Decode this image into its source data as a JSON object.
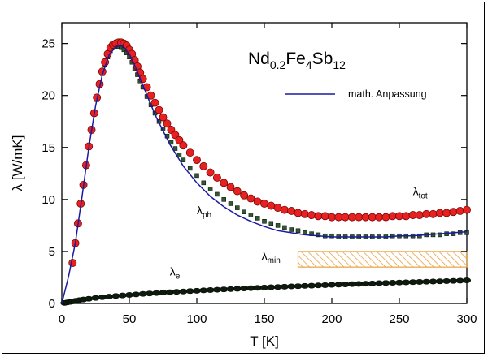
{
  "chart_data": {
    "type": "scatter",
    "title": {
      "main": "Nd",
      "sub1": "0.2",
      "mid1": "Fe",
      "sub2": "4",
      "mid2": "Sb",
      "sub3": "12"
    },
    "xlabel": "T [K]",
    "ylabel": "λ [W/mK]",
    "xlim": [
      0,
      300
    ],
    "ylim": [
      0,
      27
    ],
    "xticks": [
      0,
      50,
      100,
      150,
      200,
      250,
      300
    ],
    "yticks": [
      0,
      5,
      10,
      15,
      20,
      25
    ],
    "grid": false,
    "legend": {
      "position": "top-right",
      "entries": [
        {
          "label": "math. Anpassung",
          "color": "#1a1aa0"
        }
      ]
    },
    "annotations": [
      {
        "base": "λ",
        "sub": "tot",
        "x": 260,
        "y": 10.4
      },
      {
        "base": "λ",
        "sub": "ph",
        "x": 100,
        "y": 8.6
      },
      {
        "base": "λ",
        "sub": "min",
        "x": 148,
        "y": 4.2
      },
      {
        "base": "λ",
        "sub": "e",
        "x": 80,
        "y": 2.7
      }
    ],
    "lambda_min_band": {
      "x": [
        175,
        300
      ],
      "y": [
        3.5,
        5.0
      ],
      "color": "#e8a040"
    },
    "series": [
      {
        "key": "tot",
        "marker": "circle",
        "color": "#e82020",
        "x": [
          8,
          10,
          12,
          14,
          16,
          18,
          20,
          22,
          24,
          26,
          28,
          30,
          32,
          34,
          36,
          38,
          40,
          42,
          44,
          46,
          48,
          50,
          52,
          54,
          56,
          58,
          60,
          63,
          66,
          69,
          72,
          75,
          78,
          81,
          84,
          87,
          90,
          95,
          100,
          105,
          110,
          115,
          120,
          125,
          130,
          135,
          140,
          145,
          150,
          155,
          160,
          165,
          170,
          175,
          180,
          185,
          190,
          195,
          200,
          205,
          210,
          215,
          220,
          225,
          230,
          235,
          240,
          245,
          250,
          255,
          260,
          265,
          270,
          275,
          280,
          285,
          290,
          295,
          300
        ],
        "y": [
          3.9,
          5.8,
          7.7,
          9.6,
          11.4,
          13.3,
          15.1,
          16.7,
          18.3,
          19.8,
          21.1,
          22.3,
          23.2,
          24.0,
          24.6,
          24.9,
          25.0,
          25.1,
          25.1,
          25.0,
          24.8,
          24.4,
          24.0,
          23.4,
          22.8,
          22.2,
          21.6,
          20.8,
          20.0,
          19.3,
          18.6,
          17.9,
          17.3,
          16.7,
          16.2,
          15.7,
          15.2,
          14.5,
          13.8,
          13.2,
          12.6,
          12.1,
          11.6,
          11.2,
          10.8,
          10.4,
          10.1,
          9.8,
          9.6,
          9.4,
          9.2,
          9.0,
          8.9,
          8.7,
          8.6,
          8.5,
          8.4,
          8.4,
          8.3,
          8.3,
          8.3,
          8.3,
          8.3,
          8.3,
          8.3,
          8.3,
          8.3,
          8.4,
          8.4,
          8.4,
          8.5,
          8.5,
          8.6,
          8.6,
          8.7,
          8.7,
          8.8,
          8.9,
          9.0
        ]
      },
      {
        "key": "ph",
        "marker": "square",
        "color": "#2e5a2e",
        "x": [
          8,
          10,
          12,
          14,
          16,
          18,
          20,
          22,
          24,
          26,
          28,
          30,
          32,
          34,
          36,
          38,
          40,
          42,
          44,
          46,
          48,
          50,
          52,
          54,
          56,
          58,
          60,
          63,
          66,
          69,
          72,
          75,
          78,
          81,
          84,
          87,
          90,
          95,
          100,
          105,
          110,
          115,
          120,
          125,
          130,
          135,
          140,
          145,
          150,
          155,
          160,
          165,
          170,
          175,
          180,
          185,
          190,
          195,
          200,
          205,
          210,
          215,
          220,
          225,
          230,
          235,
          240,
          245,
          250,
          255,
          260,
          265,
          270,
          275,
          280,
          285,
          290,
          295,
          300
        ],
        "y": [
          3.8,
          5.7,
          7.6,
          9.5,
          11.3,
          13.2,
          15.0,
          16.6,
          18.2,
          19.6,
          20.9,
          22.1,
          23.0,
          23.7,
          24.3,
          24.6,
          24.7,
          24.7,
          24.6,
          24.4,
          24.1,
          23.7,
          23.2,
          22.6,
          22.0,
          21.4,
          20.8,
          19.9,
          19.1,
          18.3,
          17.5,
          16.8,
          16.1,
          15.5,
          14.9,
          14.3,
          13.8,
          13.0,
          12.3,
          11.6,
          11.0,
          10.5,
          10.0,
          9.6,
          9.2,
          8.8,
          8.5,
          8.2,
          7.9,
          7.7,
          7.5,
          7.3,
          7.1,
          7.0,
          6.8,
          6.7,
          6.6,
          6.5,
          6.5,
          6.4,
          6.4,
          6.4,
          6.4,
          6.4,
          6.4,
          6.4,
          6.4,
          6.5,
          6.5,
          6.5,
          6.5,
          6.5,
          6.6,
          6.6,
          6.6,
          6.7,
          6.7,
          6.8,
          6.8
        ]
      },
      {
        "key": "e",
        "marker": "ellipse",
        "color": "#0e1a0e",
        "x": [
          2,
          4,
          6,
          8,
          10,
          13,
          16,
          20,
          25,
          30,
          35,
          40,
          45,
          50,
          55,
          60,
          65,
          70,
          75,
          80,
          85,
          90,
          95,
          100,
          105,
          110,
          115,
          120,
          125,
          130,
          135,
          140,
          145,
          150,
          155,
          160,
          165,
          170,
          175,
          180,
          185,
          190,
          195,
          200,
          205,
          210,
          215,
          220,
          225,
          230,
          235,
          240,
          245,
          250,
          255,
          260,
          265,
          270,
          275,
          280,
          285,
          290,
          295,
          300
        ],
        "y": [
          0.05,
          0.1,
          0.15,
          0.2,
          0.25,
          0.32,
          0.38,
          0.45,
          0.53,
          0.6,
          0.66,
          0.72,
          0.77,
          0.82,
          0.87,
          0.92,
          0.96,
          1.0,
          1.04,
          1.08,
          1.12,
          1.15,
          1.19,
          1.22,
          1.26,
          1.29,
          1.32,
          1.35,
          1.38,
          1.41,
          1.44,
          1.47,
          1.5,
          1.53,
          1.56,
          1.58,
          1.61,
          1.64,
          1.66,
          1.69,
          1.71,
          1.74,
          1.76,
          1.79,
          1.81,
          1.83,
          1.86,
          1.88,
          1.9,
          1.92,
          1.95,
          1.97,
          1.99,
          2.01,
          2.03,
          2.05,
          2.07,
          2.09,
          2.11,
          2.13,
          2.15,
          2.17,
          2.19,
          2.22
        ]
      },
      {
        "key": "fit",
        "marker": "line",
        "color": "#1a1aa0",
        "x": [
          0,
          5,
          10,
          15,
          20,
          25,
          30,
          35,
          40,
          45,
          50,
          55,
          60,
          65,
          70,
          80,
          90,
          100,
          110,
          120,
          130,
          140,
          150,
          160,
          170,
          180,
          190,
          200,
          210,
          220,
          230,
          240,
          250,
          260,
          270,
          280,
          290,
          300
        ],
        "y": [
          0,
          2.6,
          5.8,
          10.3,
          15.0,
          19.0,
          22.0,
          23.9,
          24.7,
          24.8,
          24.0,
          22.6,
          21.0,
          19.4,
          17.9,
          15.3,
          13.2,
          11.6,
          10.3,
          9.3,
          8.5,
          7.9,
          7.4,
          7.0,
          6.8,
          6.6,
          6.5,
          6.4,
          6.4,
          6.4,
          6.4,
          6.4,
          6.5,
          6.5,
          6.6,
          6.7,
          6.8,
          6.9
        ]
      }
    ]
  }
}
